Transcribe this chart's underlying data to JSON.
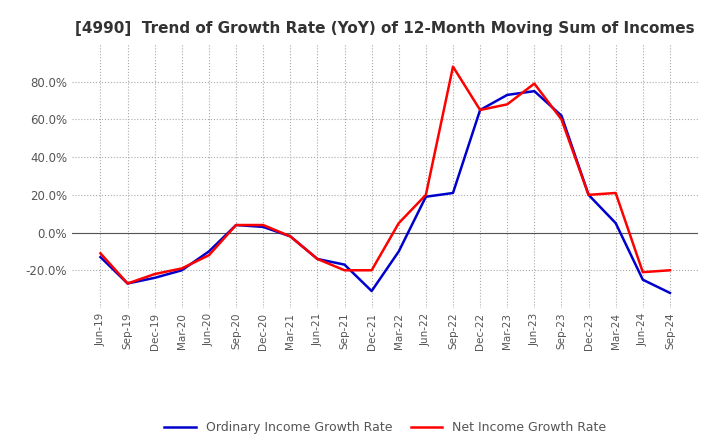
{
  "title": "[4990]  Trend of Growth Rate (YoY) of 12-Month Moving Sum of Incomes",
  "title_fontsize": 11,
  "ylim": [
    -40,
    100
  ],
  "yticks": [
    -20.0,
    0.0,
    20.0,
    40.0,
    60.0,
    80.0
  ],
  "background_color": "#ffffff",
  "grid_color": "#aaaaaa",
  "legend_labels": [
    "Ordinary Income Growth Rate",
    "Net Income Growth Rate"
  ],
  "line_colors": [
    "#0000cc",
    "#ff0000"
  ],
  "x_labels": [
    "Jun-19",
    "Sep-19",
    "Dec-19",
    "Mar-20",
    "Jun-20",
    "Sep-20",
    "Dec-20",
    "Mar-21",
    "Jun-21",
    "Sep-21",
    "Dec-21",
    "Mar-22",
    "Jun-22",
    "Sep-22",
    "Dec-22",
    "Mar-23",
    "Jun-23",
    "Sep-23",
    "Dec-23",
    "Mar-24",
    "Jun-24",
    "Sep-24"
  ],
  "ordinary_income": [
    -13,
    -27,
    -24,
    -20,
    -10,
    4,
    3,
    -2,
    -14,
    -17,
    -31,
    -10,
    19,
    21,
    65,
    73,
    75,
    62,
    20,
    5,
    -25,
    -32
  ],
  "net_income": [
    -11,
    -27,
    -22,
    -19,
    -12,
    4,
    4,
    -2,
    -14,
    -20,
    -20,
    5,
    20,
    88,
    65,
    68,
    79,
    60,
    20,
    21,
    -21,
    -20
  ]
}
